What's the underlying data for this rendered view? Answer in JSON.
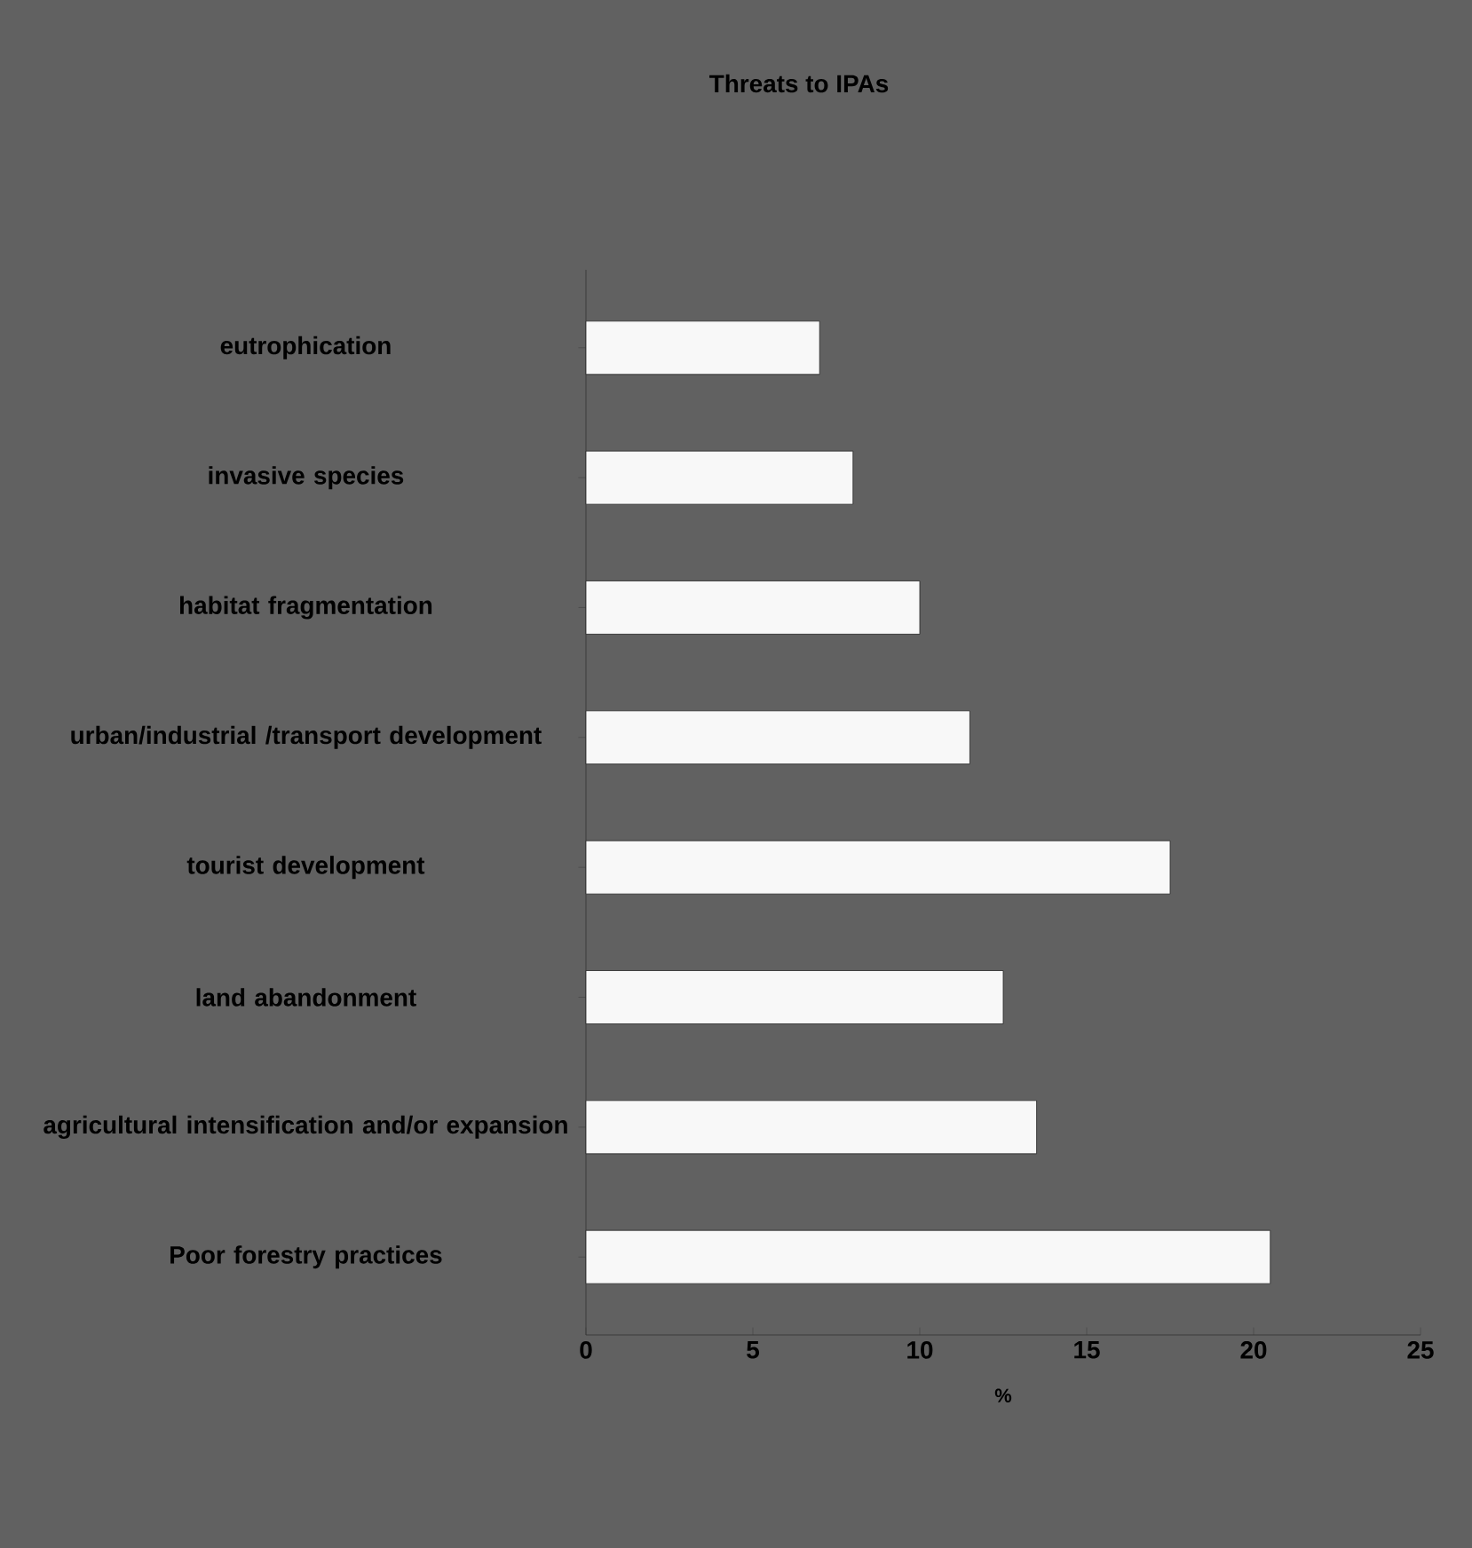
{
  "chart_data": {
    "type": "bar",
    "orientation": "horizontal",
    "title": "Threats to IPAs",
    "xlabel": "%",
    "categories": [
      "eutrophication",
      "invasive species",
      "habitat fragmentation",
      "urban/industrial /transport development",
      "tourist development",
      "land abandonment",
      "agricultural intensification and/or expansion",
      "Poor forestry practices"
    ],
    "values": [
      7,
      8,
      10,
      11.5,
      17.5,
      12.5,
      13.5,
      20.5
    ],
    "color": "#f8f8f8",
    "xlim": [
      0,
      25
    ],
    "xticks": [
      0,
      5,
      10,
      15,
      20,
      25
    ]
  }
}
